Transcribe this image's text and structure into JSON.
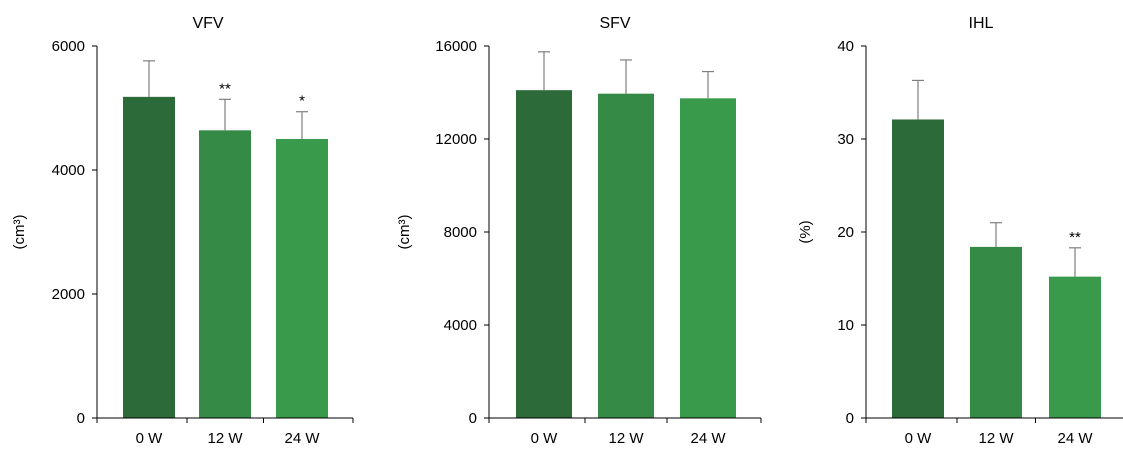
{
  "colors": {
    "bar_0w": "#2d6a3a",
    "bar_12w": "#358a45",
    "bar_24w": "#3a9a4b",
    "axis": "#000000",
    "error_bar": "#7f7f7f"
  },
  "chart_data": [
    {
      "type": "bar",
      "title": "VFV",
      "ylabel": "(cm³)",
      "xlabel": "",
      "categories": [
        "0 W",
        "12 W",
        "24 W"
      ],
      "values": [
        5180,
        4640,
        4500
      ],
      "errors": [
        580,
        500,
        440
      ],
      "significance": [
        "",
        "**",
        "*"
      ],
      "ylim": [
        0,
        6000
      ],
      "yticks": [
        0,
        2000,
        4000,
        6000
      ],
      "ytick_labels": [
        "0",
        "2000",
        "4000",
        "6000"
      ],
      "grid": false,
      "legend": "none"
    },
    {
      "type": "bar",
      "title": "SFV",
      "ylabel": "(cm³)",
      "xlabel": "",
      "categories": [
        "0 W",
        "12 W",
        "24 W"
      ],
      "values": [
        14100,
        13950,
        13750
      ],
      "errors": [
        1650,
        1450,
        1150
      ],
      "significance": [
        "",
        "",
        ""
      ],
      "ylim": [
        0,
        16000
      ],
      "yticks": [
        0,
        4000,
        8000,
        12000,
        16000
      ],
      "ytick_labels": [
        "0",
        "4000",
        "8000",
        "12000",
        "16000"
      ],
      "grid": false,
      "legend": "none"
    },
    {
      "type": "bar",
      "title": "IHL",
      "ylabel": "(%)",
      "xlabel": "",
      "categories": [
        "0 W",
        "12 W",
        "24 W"
      ],
      "values": [
        32.1,
        18.4,
        15.2
      ],
      "errors": [
        4.2,
        2.6,
        3.1
      ],
      "significance": [
        "",
        "",
        "**"
      ],
      "ylim": [
        0,
        40
      ],
      "yticks": [
        0,
        10,
        20,
        30,
        40
      ],
      "ytick_labels": [
        "0",
        "10",
        "20",
        "30",
        "40"
      ],
      "grid": false,
      "legend": "none"
    }
  ]
}
